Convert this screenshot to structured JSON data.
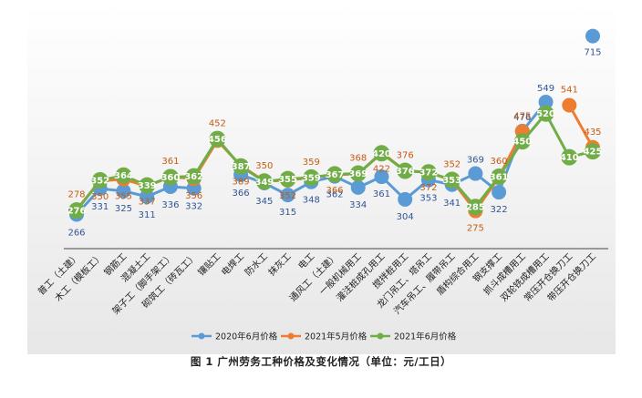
{
  "caption": "图 1   广州劳务工种价格及变化情况（单位：元/工日）",
  "chart_data": {
    "type": "line",
    "title": "",
    "xlabel": "",
    "ylabel": "",
    "ylim": [
      180,
      760
    ],
    "grid": false,
    "legend_position": "bottom",
    "categories": [
      "普工（土建）",
      "木工（模板工）",
      "钢筋工",
      "混凝土工",
      "架子工（脚手架工）",
      "砌筑工（砖瓦工）",
      "镶贴工",
      "电焊工",
      "防水工",
      "抹灰工",
      "电工",
      "通风工（土建）",
      "一般机械用工",
      "灌注桩成孔用工",
      "搅拌桩用工",
      "龙门吊工、塔吊工",
      "汽车吊工、履带吊工",
      "盾构综合用工",
      "钢支撑工",
      "抓斗成槽用工",
      "双轮铣成槽用工",
      "常压开仓换刀工",
      "带压开仓换刀工"
    ],
    "series": [
      {
        "name": "2020年6月价格",
        "color": "#5B9BD5",
        "text_color": "#2F5597",
        "values": [
          266,
          331,
          325,
          311,
          336,
          332,
          null,
          366,
          345,
          315,
          348,
          362,
          334,
          361,
          304,
          353,
          341,
          369,
          322,
          476,
          549,
          null,
          715
        ]
      },
      {
        "name": "2021年5月价格",
        "color": "#ED7D31",
        "text_color": "#C55A11",
        "values": [
          278,
          350,
          355,
          337,
          361,
          356,
          452,
          389,
          350,
          352,
          359,
          366,
          368,
          422,
          376,
          372,
          352,
          275,
          360,
          475,
          null,
          541,
          435
        ]
      },
      {
        "name": "2021年6月价格",
        "color": "#70AD47",
        "text_color": "#ffffff",
        "values": [
          276,
          352,
          364,
          339,
          360,
          362,
          456,
          387,
          349,
          355,
          359,
          367,
          369,
          420,
          376,
          372,
          353,
          285,
          361,
          450,
          520,
          410,
          425
        ]
      }
    ]
  }
}
